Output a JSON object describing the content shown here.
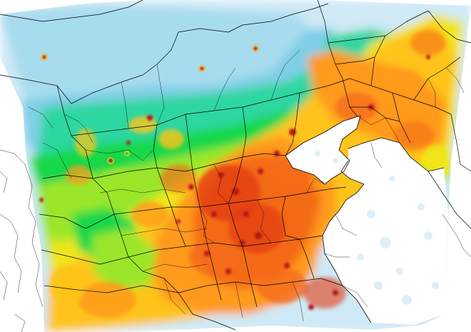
{
  "map": {
    "type": "gridded concentration field over administrative boundaries",
    "legend": "none visible",
    "text_labels": [],
    "palette": {
      "background": "#ffffff",
      "water": "#ffffff",
      "no_data": "#ffffff",
      "boundary": "#000000",
      "levels": [
        "#cfe9f6",
        "#a7dcef",
        "#7fcfe6",
        "#5bc8d8",
        "#2fd6a2",
        "#12d84a",
        "#9be62a",
        "#f0e61a",
        "#ffc41a",
        "#ff9a1a",
        "#f46a18",
        "#e23a16",
        "#b41816"
      ]
    }
  }
}
